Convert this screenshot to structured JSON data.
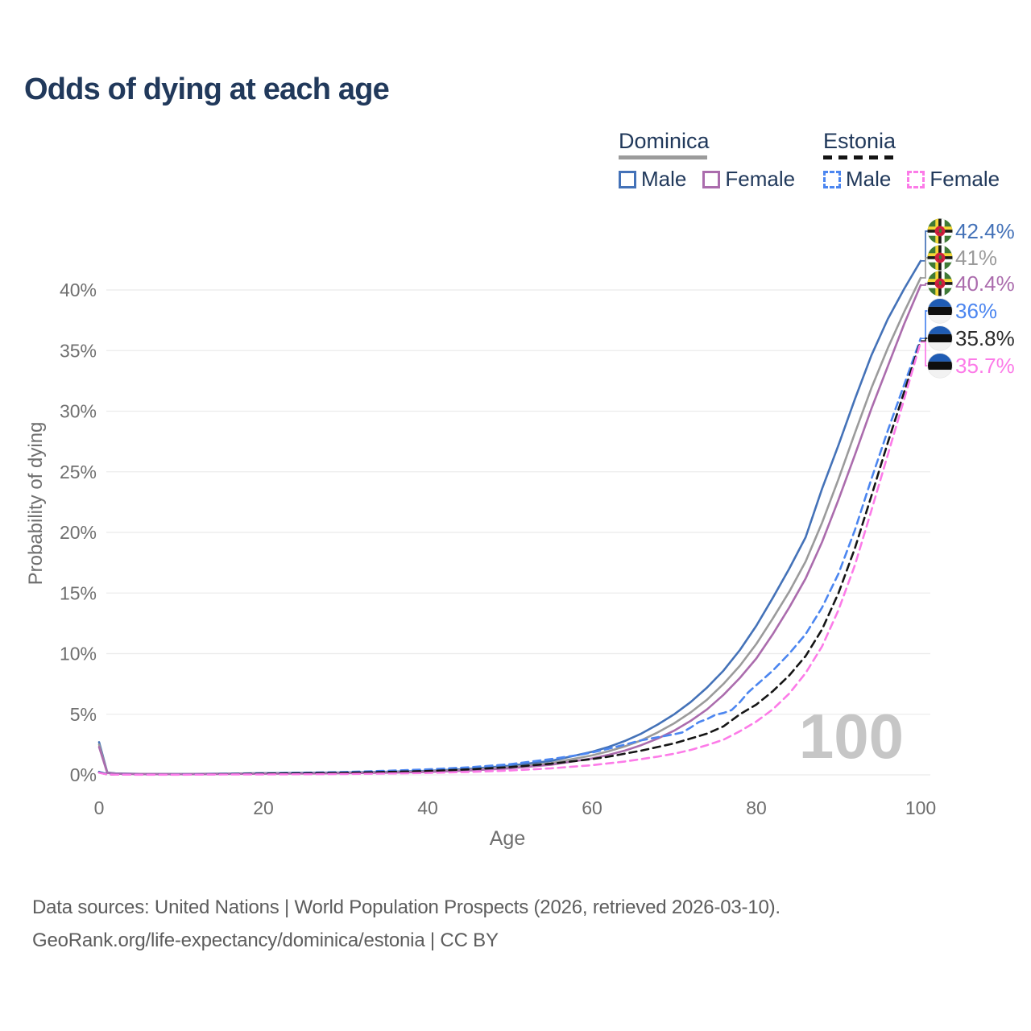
{
  "title": "Odds of dying at each age",
  "legend": {
    "groups": [
      {
        "name": "Dominica",
        "style": "solid",
        "color": "#9b9b9b",
        "items": [
          {
            "label": "Male",
            "color": "#4472b8",
            "dash": false
          },
          {
            "label": "Female",
            "color": "#ab6cad",
            "dash": false
          }
        ]
      },
      {
        "name": "Estonia",
        "style": "dashed",
        "color": "#141414",
        "items": [
          {
            "label": "Male",
            "color": "#4c86f0",
            "dash": true
          },
          {
            "label": "Female",
            "color": "#fc7be8",
            "dash": true
          }
        ]
      }
    ]
  },
  "chart_data": {
    "type": "line",
    "title": "Odds of dying at each age",
    "xlabel": "Age",
    "ylabel": "Probability of dying",
    "xlim": [
      0,
      100
    ],
    "ylim": [
      0,
      40
    ],
    "x_ticks": [
      0,
      20,
      40,
      60,
      80,
      100
    ],
    "x_tick_labels": [
      "0",
      "20",
      "40",
      "60",
      "80",
      "100"
    ],
    "y_ticks": [
      0,
      5,
      10,
      15,
      20,
      25,
      30,
      35,
      40
    ],
    "y_tick_labels": [
      "0%",
      "5%",
      "10%",
      "15%",
      "20%",
      "25%",
      "30%",
      "35%",
      "40%"
    ],
    "grid": "horizontal",
    "grid_color": "#ebebeb",
    "tick_color": "#6f6f6f",
    "watermark": "100",
    "watermark_color": "#c6c6c6",
    "series": [
      {
        "id": "dominica-male",
        "name": "Dominica Male",
        "color": "#4472b8",
        "dash": false,
        "points": [
          [
            0,
            2.7
          ],
          [
            1,
            0.2
          ],
          [
            2,
            0.12
          ],
          [
            5,
            0.08
          ],
          [
            10,
            0.07
          ],
          [
            15,
            0.1
          ],
          [
            20,
            0.14
          ],
          [
            25,
            0.17
          ],
          [
            30,
            0.2
          ],
          [
            35,
            0.25
          ],
          [
            40,
            0.33
          ],
          [
            45,
            0.5
          ],
          [
            50,
            0.75
          ],
          [
            55,
            1.15
          ],
          [
            60,
            1.9
          ],
          [
            62,
            2.3
          ],
          [
            64,
            2.8
          ],
          [
            66,
            3.4
          ],
          [
            68,
            4.15
          ],
          [
            70,
            5.0
          ],
          [
            72,
            6.0
          ],
          [
            74,
            7.2
          ],
          [
            76,
            8.6
          ],
          [
            78,
            10.3
          ],
          [
            80,
            12.3
          ],
          [
            82,
            14.6
          ],
          [
            84,
            17.0
          ],
          [
            86,
            19.6
          ],
          [
            88,
            23.6
          ],
          [
            90,
            27.2
          ],
          [
            92,
            31.0
          ],
          [
            94,
            34.6
          ],
          [
            96,
            37.6
          ],
          [
            98,
            40.1
          ],
          [
            100,
            42.4
          ]
        ]
      },
      {
        "id": "dominica-both",
        "name": "Dominica Both sexes",
        "color": "#9b9b9b",
        "dash": false,
        "points": [
          [
            0,
            2.5
          ],
          [
            1,
            0.18
          ],
          [
            2,
            0.1
          ],
          [
            5,
            0.07
          ],
          [
            10,
            0.06
          ],
          [
            15,
            0.09
          ],
          [
            20,
            0.12
          ],
          [
            25,
            0.14
          ],
          [
            30,
            0.17
          ],
          [
            35,
            0.21
          ],
          [
            40,
            0.28
          ],
          [
            45,
            0.42
          ],
          [
            50,
            0.63
          ],
          [
            55,
            0.97
          ],
          [
            60,
            1.6
          ],
          [
            62,
            1.95
          ],
          [
            64,
            2.35
          ],
          [
            66,
            2.85
          ],
          [
            68,
            3.5
          ],
          [
            70,
            4.25
          ],
          [
            72,
            5.15
          ],
          [
            74,
            6.2
          ],
          [
            76,
            7.5
          ],
          [
            78,
            9.0
          ],
          [
            80,
            10.8
          ],
          [
            82,
            12.9
          ],
          [
            84,
            15.1
          ],
          [
            86,
            17.6
          ],
          [
            88,
            20.8
          ],
          [
            90,
            24.4
          ],
          [
            92,
            28.2
          ],
          [
            94,
            31.9
          ],
          [
            96,
            35.2
          ],
          [
            98,
            38.2
          ],
          [
            100,
            41.0
          ]
        ]
      },
      {
        "id": "dominica-female",
        "name": "Dominica Female",
        "color": "#ab6cad",
        "dash": false,
        "points": [
          [
            0,
            2.3
          ],
          [
            1,
            0.16
          ],
          [
            2,
            0.09
          ],
          [
            5,
            0.06
          ],
          [
            10,
            0.05
          ],
          [
            15,
            0.07
          ],
          [
            20,
            0.09
          ],
          [
            25,
            0.11
          ],
          [
            30,
            0.14
          ],
          [
            35,
            0.18
          ],
          [
            40,
            0.24
          ],
          [
            45,
            0.36
          ],
          [
            50,
            0.54
          ],
          [
            55,
            0.83
          ],
          [
            60,
            1.35
          ],
          [
            62,
            1.65
          ],
          [
            64,
            2.0
          ],
          [
            66,
            2.45
          ],
          [
            68,
            3.0
          ],
          [
            70,
            3.65
          ],
          [
            72,
            4.45
          ],
          [
            74,
            5.4
          ],
          [
            76,
            6.6
          ],
          [
            78,
            8.0
          ],
          [
            80,
            9.6
          ],
          [
            82,
            11.6
          ],
          [
            84,
            13.8
          ],
          [
            86,
            16.2
          ],
          [
            88,
            19.2
          ],
          [
            90,
            22.7
          ],
          [
            92,
            26.4
          ],
          [
            94,
            30.2
          ],
          [
            96,
            33.7
          ],
          [
            98,
            37.2
          ],
          [
            100,
            40.4
          ]
        ]
      },
      {
        "id": "estonia-male",
        "name": "Estonia Male",
        "color": "#4c86f0",
        "dash": true,
        "points": [
          [
            0,
            0.25
          ],
          [
            1,
            0.05
          ],
          [
            2,
            0.03
          ],
          [
            5,
            0.02
          ],
          [
            10,
            0.025
          ],
          [
            15,
            0.07
          ],
          [
            20,
            0.13
          ],
          [
            25,
            0.18
          ],
          [
            30,
            0.24
          ],
          [
            35,
            0.33
          ],
          [
            40,
            0.45
          ],
          [
            45,
            0.62
          ],
          [
            50,
            0.88
          ],
          [
            55,
            1.3
          ],
          [
            58,
            1.6
          ],
          [
            60,
            1.85
          ],
          [
            62,
            2.15
          ],
          [
            64,
            2.5
          ],
          [
            66,
            2.85
          ],
          [
            68,
            3.1
          ],
          [
            70,
            3.35
          ],
          [
            71,
            3.5
          ],
          [
            72,
            3.9
          ],
          [
            73,
            4.35
          ],
          [
            74,
            4.6
          ],
          [
            75,
            4.95
          ],
          [
            76,
            5.1
          ],
          [
            77,
            5.35
          ],
          [
            78,
            6.0
          ],
          [
            79,
            6.8
          ],
          [
            80,
            7.4
          ],
          [
            82,
            8.6
          ],
          [
            84,
            10.0
          ],
          [
            86,
            11.6
          ],
          [
            88,
            13.8
          ],
          [
            90,
            16.6
          ],
          [
            92,
            20.2
          ],
          [
            94,
            24.4
          ],
          [
            96,
            28.4
          ],
          [
            98,
            32.2
          ],
          [
            100,
            36.0
          ]
        ]
      },
      {
        "id": "estonia-both",
        "name": "Estonia Both sexes",
        "color": "#151515",
        "dash": true,
        "points": [
          [
            0,
            0.2
          ],
          [
            1,
            0.04
          ],
          [
            2,
            0.028
          ],
          [
            5,
            0.018
          ],
          [
            10,
            0.02
          ],
          [
            15,
            0.05
          ],
          [
            20,
            0.1
          ],
          [
            25,
            0.13
          ],
          [
            30,
            0.17
          ],
          [
            35,
            0.24
          ],
          [
            40,
            0.32
          ],
          [
            45,
            0.45
          ],
          [
            50,
            0.64
          ],
          [
            55,
            0.92
          ],
          [
            60,
            1.3
          ],
          [
            62,
            1.5
          ],
          [
            64,
            1.75
          ],
          [
            66,
            2.0
          ],
          [
            68,
            2.3
          ],
          [
            70,
            2.6
          ],
          [
            72,
            3.0
          ],
          [
            74,
            3.4
          ],
          [
            76,
            4.0
          ],
          [
            78,
            5.0
          ],
          [
            80,
            5.8
          ],
          [
            82,
            6.9
          ],
          [
            84,
            8.2
          ],
          [
            86,
            9.8
          ],
          [
            88,
            12.0
          ],
          [
            90,
            15.0
          ],
          [
            92,
            18.7
          ],
          [
            94,
            23.0
          ],
          [
            96,
            27.4
          ],
          [
            98,
            31.6
          ],
          [
            100,
            35.8
          ]
        ]
      },
      {
        "id": "estonia-female",
        "name": "Estonia Female",
        "color": "#fc7be8",
        "dash": true,
        "points": [
          [
            0,
            0.17
          ],
          [
            1,
            0.03
          ],
          [
            2,
            0.02
          ],
          [
            5,
            0.013
          ],
          [
            10,
            0.015
          ],
          [
            15,
            0.03
          ],
          [
            20,
            0.04
          ],
          [
            25,
            0.055
          ],
          [
            30,
            0.075
          ],
          [
            35,
            0.11
          ],
          [
            40,
            0.16
          ],
          [
            45,
            0.24
          ],
          [
            50,
            0.36
          ],
          [
            55,
            0.54
          ],
          [
            60,
            0.8
          ],
          [
            62,
            0.95
          ],
          [
            64,
            1.1
          ],
          [
            66,
            1.3
          ],
          [
            68,
            1.5
          ],
          [
            70,
            1.75
          ],
          [
            72,
            2.05
          ],
          [
            74,
            2.45
          ],
          [
            76,
            2.9
          ],
          [
            78,
            3.6
          ],
          [
            80,
            4.4
          ],
          [
            82,
            5.4
          ],
          [
            84,
            6.7
          ],
          [
            86,
            8.4
          ],
          [
            88,
            10.6
          ],
          [
            90,
            13.6
          ],
          [
            92,
            17.3
          ],
          [
            94,
            21.8
          ],
          [
            96,
            26.4
          ],
          [
            98,
            31.0
          ],
          [
            100,
            35.7
          ]
        ]
      }
    ],
    "end_labels": [
      {
        "text": "42.4%",
        "value": 42.4,
        "flag": "dominica",
        "color": "#4472b8"
      },
      {
        "text": "41%",
        "value": 41.0,
        "flag": "dominica",
        "color": "#9b9b9b"
      },
      {
        "text": "40.4%",
        "value": 40.4,
        "flag": "dominica",
        "color": "#ab6cad"
      },
      {
        "text": "36%",
        "value": 36.0,
        "flag": "estonia",
        "color": "#4c86f0"
      },
      {
        "text": "35.8%",
        "value": 35.8,
        "flag": "estonia",
        "color": "#2b2b2b"
      },
      {
        "text": "35.7%",
        "value": 35.7,
        "flag": "estonia",
        "color": "#fc7be8"
      }
    ]
  },
  "source": {
    "line1": "Data sources: United Nations | World Population Prospects (2026, retrieved 2026-03-10).",
    "line2": "GeoRank.org/life-expectancy/dominica/estonia | CC BY"
  }
}
